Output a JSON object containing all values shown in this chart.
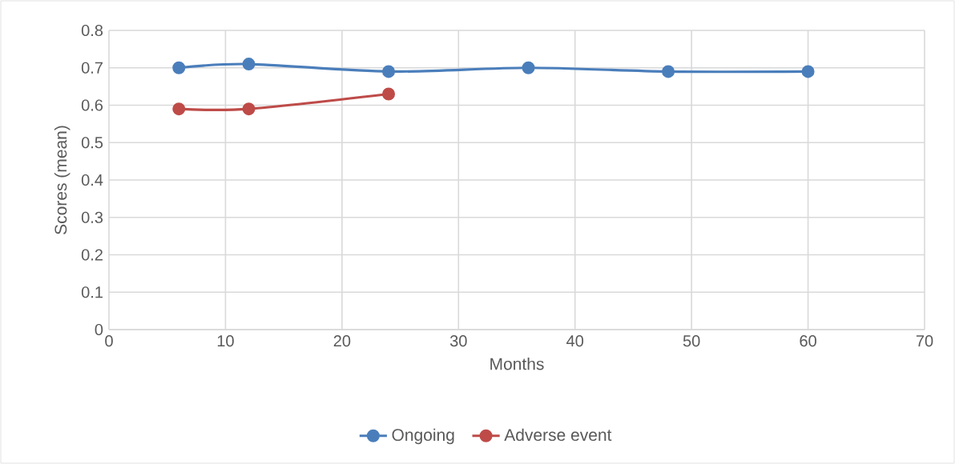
{
  "chart_data": {
    "type": "line",
    "xlabel": "Months",
    "ylabel": "Scores (mean)",
    "xlim": [
      0,
      70
    ],
    "xticks": [
      0,
      10,
      20,
      30,
      40,
      50,
      60,
      70
    ],
    "ylim": [
      0,
      0.8
    ],
    "yticks": [
      0,
      0.1,
      0.2,
      0.3,
      0.4,
      0.5,
      0.6,
      0.7,
      0.8
    ],
    "grid": true,
    "legend": "bottom",
    "marker": "circle",
    "line_style": "solid",
    "series": [
      {
        "name": "Ongoing",
        "color": "#4a7ebb",
        "x": [
          6,
          12,
          24,
          36,
          48,
          60
        ],
        "values": [
          0.7,
          0.71,
          0.69,
          0.7,
          0.69,
          0.69
        ]
      },
      {
        "name": "Adverse event",
        "color": "#be4b48",
        "x": [
          6,
          12,
          24
        ],
        "values": [
          0.59,
          0.59,
          0.63
        ]
      }
    ]
  }
}
